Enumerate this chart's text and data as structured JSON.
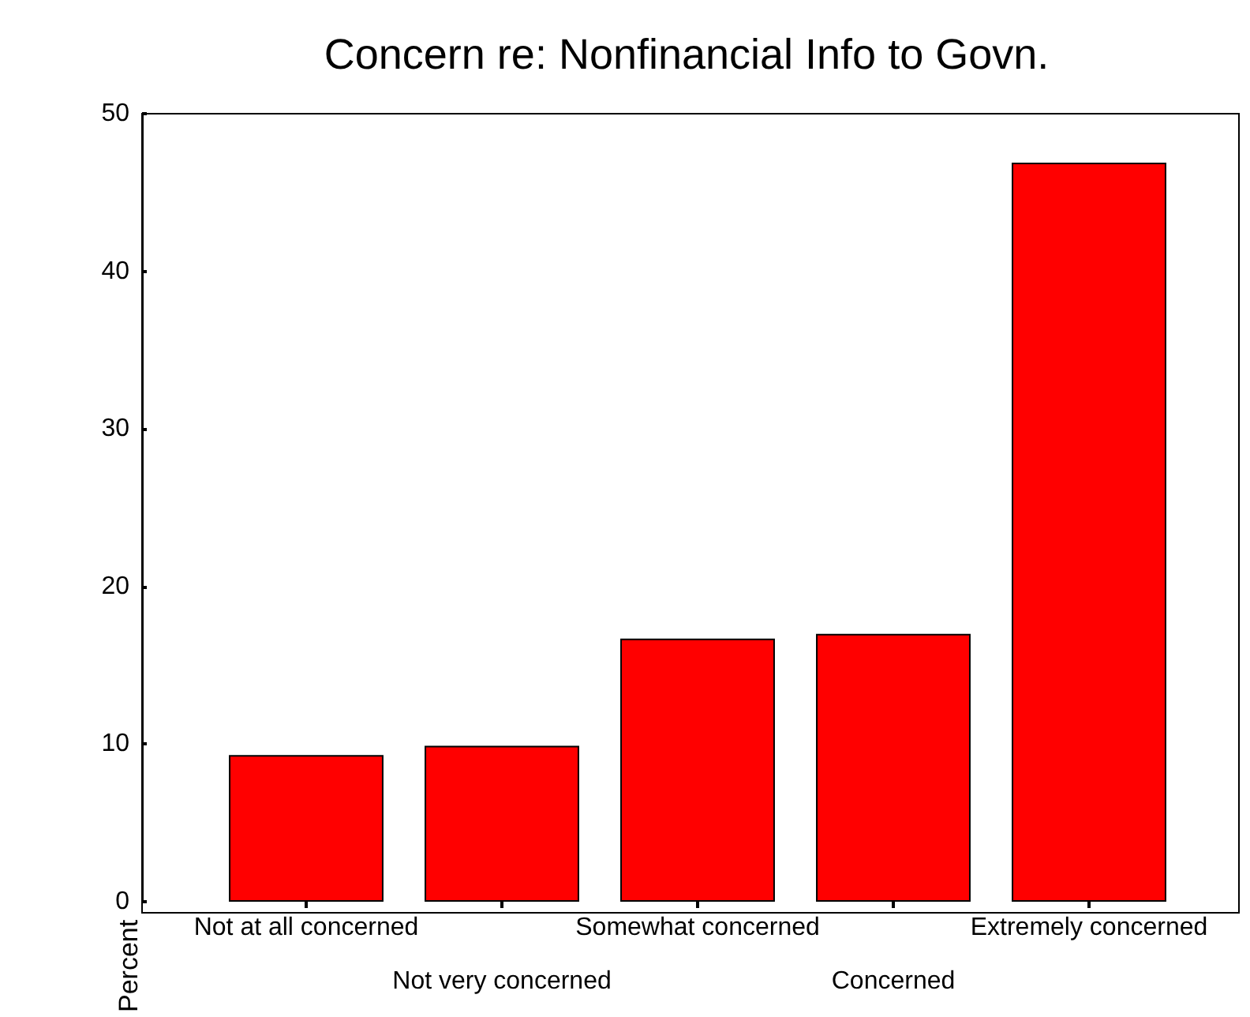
{
  "chart_data": {
    "type": "bar",
    "title": "Concern re: Nonfinancial Info to Govn.",
    "ylabel": "Percent",
    "categories": [
      "Not at all concerned",
      "Not very concerned",
      "Somewhat concerned",
      "Concerned",
      "Extremely concerned"
    ],
    "values": [
      9.3,
      9.9,
      16.7,
      17.0,
      46.9
    ],
    "color": "#ff0000",
    "ylim": [
      0,
      50
    ],
    "yticks": [
      0,
      10,
      20,
      30,
      40,
      50
    ],
    "grid": false
  }
}
